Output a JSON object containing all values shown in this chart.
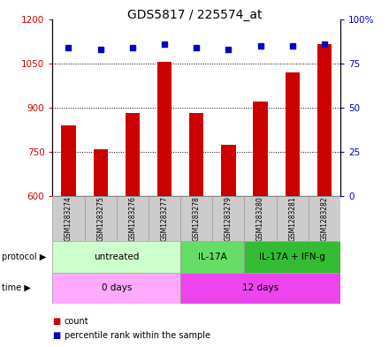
{
  "title": "GDS5817 / 225574_at",
  "samples": [
    "GSM1283274",
    "GSM1283275",
    "GSM1283276",
    "GSM1283277",
    "GSM1283278",
    "GSM1283279",
    "GSM1283280",
    "GSM1283281",
    "GSM1283282"
  ],
  "counts": [
    840,
    758,
    883,
    1055,
    883,
    775,
    920,
    1020,
    1115
  ],
  "percentile_ranks": [
    84,
    83,
    84,
    86,
    84,
    83,
    85,
    85,
    86
  ],
  "ylim_left": [
    600,
    1200
  ],
  "ylim_right": [
    0,
    100
  ],
  "yticks_left": [
    600,
    750,
    900,
    1050,
    1200
  ],
  "yticks_right": [
    0,
    25,
    50,
    75,
    100
  ],
  "ytick_labels_right": [
    "0",
    "25",
    "50",
    "75",
    "100%"
  ],
  "bar_color": "#cc0000",
  "dot_color": "#0000cc",
  "protocol_groups": [
    {
      "label": "untreated",
      "start": 0,
      "end": 4,
      "color": "#ccffcc"
    },
    {
      "label": "IL-17A",
      "start": 4,
      "end": 6,
      "color": "#66dd66"
    },
    {
      "label": "IL-17A + IFN-g",
      "start": 6,
      "end": 9,
      "color": "#33bb33"
    }
  ],
  "time_groups": [
    {
      "label": "0 days",
      "start": 0,
      "end": 4,
      "color": "#ffaaff"
    },
    {
      "label": "12 days",
      "start": 4,
      "end": 9,
      "color": "#ee44ee"
    }
  ],
  "sample_bg_color": "#cccccc",
  "legend_items": [
    {
      "label": "count",
      "color": "#cc0000"
    },
    {
      "label": "percentile rank within the sample",
      "color": "#0000cc"
    }
  ]
}
